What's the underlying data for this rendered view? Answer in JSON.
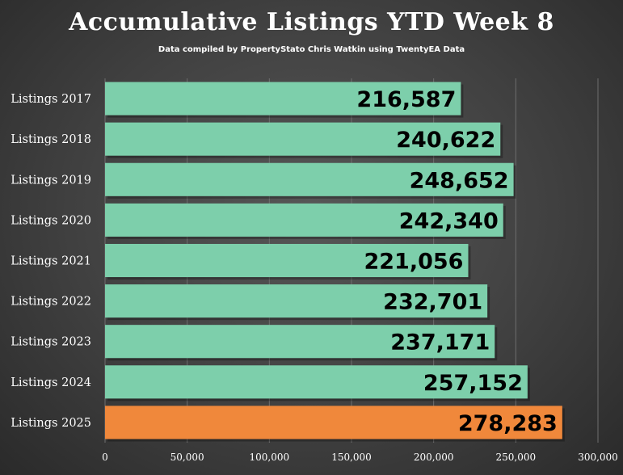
{
  "chart_data": {
    "type": "bar",
    "orientation": "horizontal",
    "title": "Accumulative Listings YTD Week 8",
    "subtitle": "Data compiled by PropertyStato Chris Watkin using TwentyEA Data",
    "categories": [
      "Listings 2017",
      "Listings 2018",
      "Listings 2019",
      "Listings 2020",
      "Listings 2021",
      "Listings 2022",
      "Listings 2023",
      "Listings 2024",
      "Listings 2025"
    ],
    "values": [
      216587,
      240622,
      248652,
      242340,
      221056,
      232701,
      237171,
      257152,
      278283
    ],
    "value_labels": [
      "216,587",
      "240,622",
      "248,652",
      "242,340",
      "221,056",
      "232,701",
      "237,171",
      "257,152",
      "278,283"
    ],
    "xlim": [
      0,
      300000
    ],
    "x_ticks": [
      0,
      50000,
      100000,
      150000,
      200000,
      250000,
      300000
    ],
    "x_tick_labels": [
      "0",
      "50,000",
      "100,000",
      "150,000",
      "200,000",
      "250,000",
      "300,000"
    ],
    "grid": true,
    "colors": {
      "default_bar": "#7dcfab",
      "highlight_bar": "#f0883b",
      "grid": "#6e6e6e",
      "text": "#ffffff",
      "value_text": "#000000"
    },
    "highlight_index": 8
  }
}
